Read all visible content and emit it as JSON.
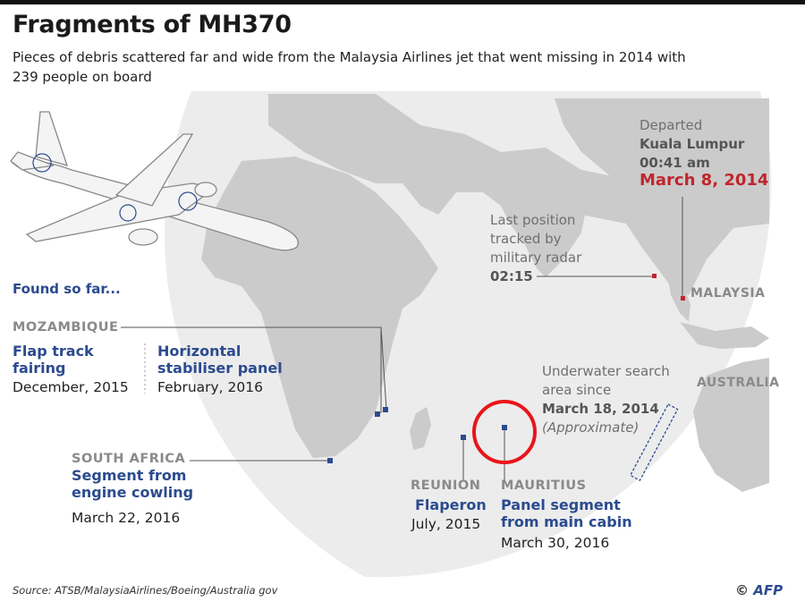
{
  "header": {
    "title": "Fragments of MH370",
    "subtitle": "Pieces of debris scattered far and wide from the Malaysia Airlines jet that went missing in 2014 with 239 people on board"
  },
  "found_so_far": "Found so far...",
  "departed": {
    "label": "Departed",
    "city": "Kuala Lumpur",
    "time": "00:41 am",
    "date": "March 8, 2014"
  },
  "last_position": {
    "line1": "Last position",
    "line2": "tracked by",
    "line3": "military radar",
    "time": "02:15"
  },
  "search_area": {
    "line1": "Underwater search",
    "line2": "area since",
    "date": "March 18, 2014",
    "note": "(Approximate)"
  },
  "countries": {
    "malaysia": "MALAYSIA",
    "australia": "AUSTRALIA"
  },
  "debris": {
    "mozambique": {
      "country": "MOZAMBIQUE",
      "item1_line1": "Flap track",
      "item1_line2": "fairing",
      "item1_date": "December, 2015",
      "item2_line1": "Horizontal",
      "item2_line2": "stabiliser panel",
      "item2_date": "February, 2016"
    },
    "south_africa": {
      "country": "SOUTH AFRICA",
      "item_line1": "Segment from",
      "item_line2": "engine cowling",
      "date": "March 22, 2016"
    },
    "reunion": {
      "country": "REUNION",
      "item": "Flaperon",
      "date": "July, 2015"
    },
    "mauritius": {
      "country": "MAURITIUS",
      "item_line1": "Panel segment",
      "item_line2": "from main cabin",
      "date": "March 30, 2016"
    }
  },
  "footer": {
    "source": "Source: ATSB/MalaysiaAirlines/Boeing/Australia gov",
    "credit_symbol": "©",
    "credit_brand": "AFP"
  },
  "colors": {
    "globe": "#ececec",
    "land": "#c9c9c9",
    "marker": "#2b4b8f",
    "accent": "#c0262c",
    "highlight_circle": "#e8141b"
  }
}
